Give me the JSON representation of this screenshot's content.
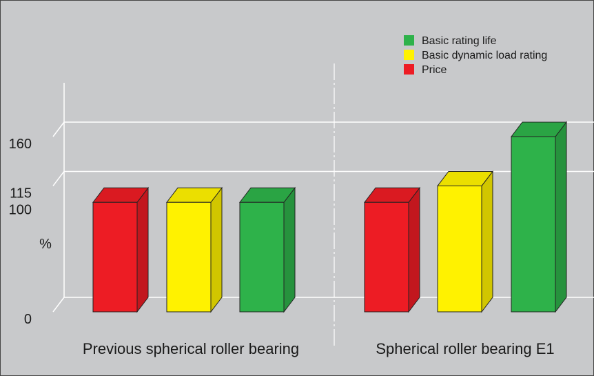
{
  "chart_data": {
    "type": "bar",
    "groups": [
      "Previous spherical roller bearing",
      "Spherical roller bearing E1"
    ],
    "series": [
      {
        "name": "Price",
        "color": "#ed1c24",
        "values": [
          100,
          100
        ]
      },
      {
        "name": "Basic dynamic load rating",
        "color": "#fff200",
        "values": [
          100,
          115
        ]
      },
      {
        "name": "Basic rating life",
        "color": "#2eb24a",
        "values": [
          100,
          160
        ]
      }
    ],
    "legend_order": [
      "Basic rating life",
      "Basic dynamic load rating",
      "Price"
    ],
    "ylabel": "%",
    "yticks": [
      0,
      100,
      115,
      160
    ],
    "ylim": [
      0,
      160
    ],
    "gridlines_at": [
      0,
      115,
      160
    ],
    "legend_position": "top-right",
    "background_color": "#c8c9cb",
    "style": "3d"
  }
}
